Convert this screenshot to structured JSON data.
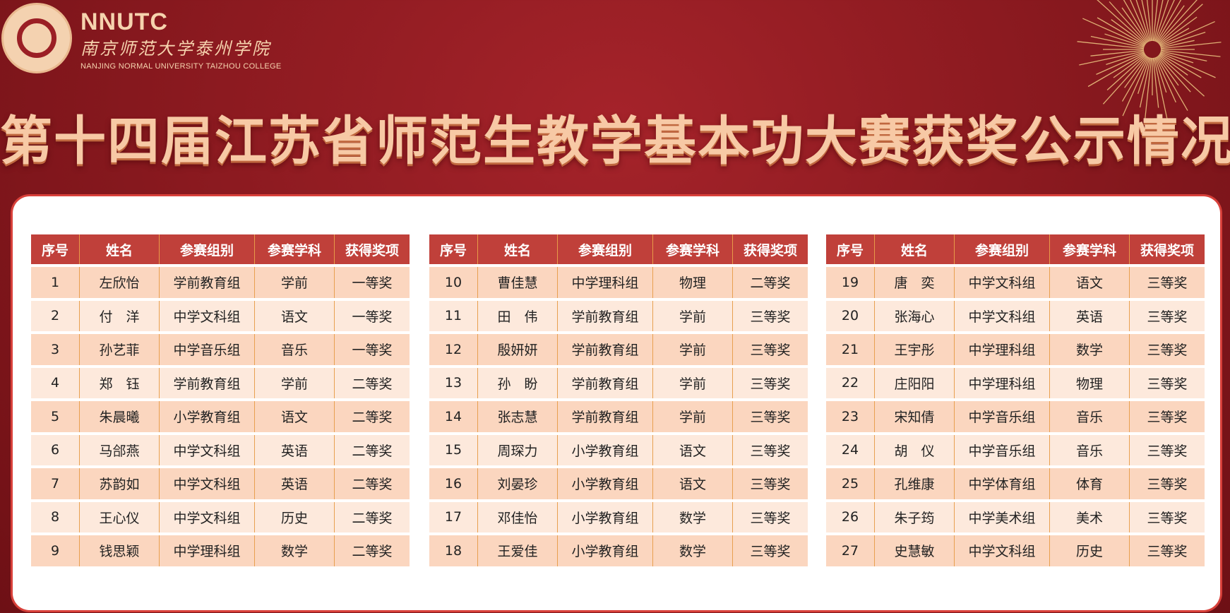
{
  "brand": {
    "abbr": "NNUTC",
    "cn_name": "南京师范大学泰州学院",
    "en_name": "NANJING NORMAL UNIVERSITY TAIZHOU COLLEGE",
    "seal_text": "NNUTC"
  },
  "title": "第十四届江苏省师范生教学基本功大赛获奖公示情况",
  "colors": {
    "background": "#8c1a20",
    "header": "#c0403a",
    "row_odd": "#fbd6bf",
    "row_even": "#fde9dc",
    "title": "#f7c9a5"
  },
  "columns": [
    "序号",
    "姓名",
    "参赛组别",
    "参赛学科",
    "获得奖项"
  ],
  "tables": [
    [
      [
        "1",
        "左欣怡",
        "学前教育组",
        "学前",
        "一等奖"
      ],
      [
        "2",
        "付　洋",
        "中学文科组",
        "语文",
        "一等奖"
      ],
      [
        "3",
        "孙艺菲",
        "中学音乐组",
        "音乐",
        "一等奖"
      ],
      [
        "4",
        "郑　钰",
        "学前教育组",
        "学前",
        "二等奖"
      ],
      [
        "5",
        "朱晨曦",
        "小学教育组",
        "语文",
        "二等奖"
      ],
      [
        "6",
        "马郃燕",
        "中学文科组",
        "英语",
        "二等奖"
      ],
      [
        "7",
        "苏韵如",
        "中学文科组",
        "英语",
        "二等奖"
      ],
      [
        "8",
        "王心仪",
        "中学文科组",
        "历史",
        "二等奖"
      ],
      [
        "9",
        "钱思颖",
        "中学理科组",
        "数学",
        "二等奖"
      ]
    ],
    [
      [
        "10",
        "曹佳慧",
        "中学理科组",
        "物理",
        "二等奖"
      ],
      [
        "11",
        "田　伟",
        "学前教育组",
        "学前",
        "三等奖"
      ],
      [
        "12",
        "殷妍妍",
        "学前教育组",
        "学前",
        "三等奖"
      ],
      [
        "13",
        "孙　盼",
        "学前教育组",
        "学前",
        "三等奖"
      ],
      [
        "14",
        "张志慧",
        "学前教育组",
        "学前",
        "三等奖"
      ],
      [
        "15",
        "周琛力",
        "小学教育组",
        "语文",
        "三等奖"
      ],
      [
        "16",
        "刘晏珍",
        "小学教育组",
        "语文",
        "三等奖"
      ],
      [
        "17",
        "邓佳怡",
        "小学教育组",
        "数学",
        "三等奖"
      ],
      [
        "18",
        "王爱佳",
        "小学教育组",
        "数学",
        "三等奖"
      ]
    ],
    [
      [
        "19",
        "唐　奕",
        "中学文科组",
        "语文",
        "三等奖"
      ],
      [
        "20",
        "张海心",
        "中学文科组",
        "英语",
        "三等奖"
      ],
      [
        "21",
        "王宇彤",
        "中学理科组",
        "数学",
        "三等奖"
      ],
      [
        "22",
        "庄阳阳",
        "中学理科组",
        "物理",
        "三等奖"
      ],
      [
        "23",
        "宋知倩",
        "中学音乐组",
        "音乐",
        "三等奖"
      ],
      [
        "24",
        "胡　仪",
        "中学音乐组",
        "音乐",
        "三等奖"
      ],
      [
        "25",
        "孔维康",
        "中学体育组",
        "体育",
        "三等奖"
      ],
      [
        "26",
        "朱子筠",
        "中学美术组",
        "美术",
        "三等奖"
      ],
      [
        "27",
        "史慧敏",
        "中学文科组",
        "历史",
        "三等奖"
      ]
    ]
  ]
}
